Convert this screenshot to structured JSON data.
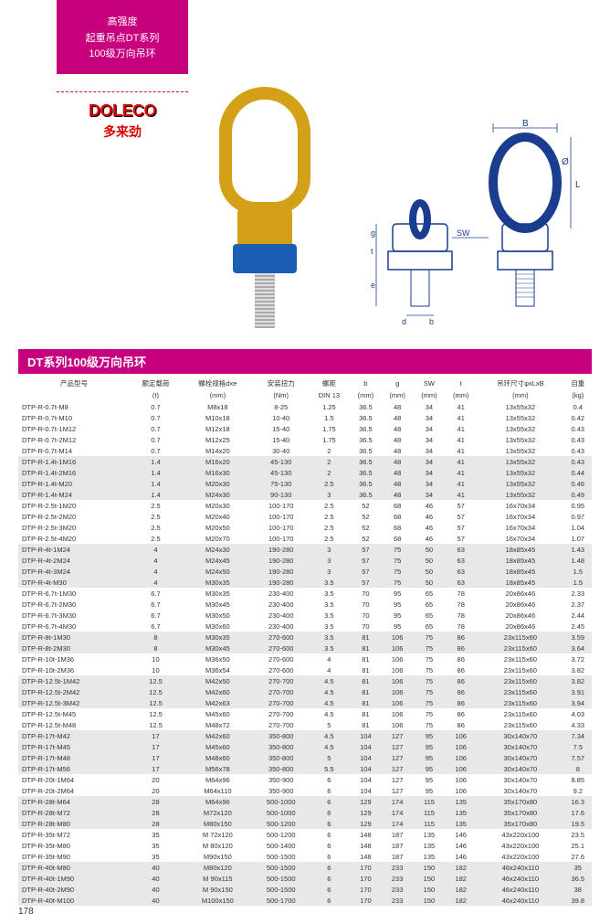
{
  "header": {
    "line1": "高强度",
    "line2": "起重吊点DT系列",
    "line3": "100级万向吊环"
  },
  "logo": {
    "en": "DOLECO",
    "cn": "多来劲"
  },
  "diagram_labels": {
    "B": "B",
    "L": "L",
    "phi": "Ø",
    "SW": "SW",
    "g": "g",
    "t": "t",
    "e": "e",
    "d": "d",
    "b": "b"
  },
  "section_title": "DT系列100级万向吊环",
  "columns": [
    {
      "h1": "产品型号",
      "h2": ""
    },
    {
      "h1": "额定载荷",
      "h2": "(t)"
    },
    {
      "h1": "螺栓规格dxe",
      "h2": "(mm)"
    },
    {
      "h1": "安装扭力",
      "h2": "(Nm)"
    },
    {
      "h1": "螺距",
      "h2": "DIN 13"
    },
    {
      "h1": "b",
      "h2": "(mm)"
    },
    {
      "h1": "g",
      "h2": "(mm)"
    },
    {
      "h1": "SW",
      "h2": "(mm)"
    },
    {
      "h1": "t",
      "h2": "(mm)"
    },
    {
      "h1": "吊环尺寸φxLxB",
      "h2": "(mm)"
    },
    {
      "h1": "自重",
      "h2": "(kg)"
    }
  ],
  "rows": [
    [
      "DTP-R-0.7t-M8",
      "0.7",
      "M8x18",
      "8-25",
      "1.25",
      "36.5",
      "48",
      "34",
      "41",
      "13x55x32",
      "0.4"
    ],
    [
      "DTP-R-0.7t-M10",
      "0.7",
      "M10x18",
      "10-40",
      "1.5",
      "36.5",
      "48",
      "34",
      "41",
      "13x55x32",
      "0.42"
    ],
    [
      "DTP-R-0.7t-1M12",
      "0.7",
      "M12x18",
      "15-40",
      "1.75",
      "36.5",
      "48",
      "34",
      "41",
      "13x55x32",
      "0.43"
    ],
    [
      "DTP-R-0.7t-2M12",
      "0.7",
      "M12x25",
      "15-40",
      "1.75",
      "36.5",
      "48",
      "34",
      "41",
      "13x55x32",
      "0.43"
    ],
    [
      "DTP-R-0.7t-M14",
      "0.7",
      "M14x20",
      "30-40",
      "2",
      "36.5",
      "48",
      "34",
      "41",
      "13x55x32",
      "0.43"
    ],
    [
      "DTP-R-1.4t-1M16",
      "1.4",
      "M16x20",
      "45-130",
      "2",
      "36.5",
      "48",
      "34",
      "41",
      "13x55x32",
      "0.43"
    ],
    [
      "DTP-R-1.4t-2M16",
      "1.4",
      "M16x30",
      "45-130",
      "2",
      "36.5",
      "48",
      "34",
      "41",
      "13x55x32",
      "0.44"
    ],
    [
      "DTP-R-1.4t-M20",
      "1.4",
      "M20x30",
      "75-130",
      "2.5",
      "36.5",
      "48",
      "34",
      "41",
      "13x55x32",
      "0.46"
    ],
    [
      "DTP-R-1.4t-M24",
      "1.4",
      "M24x30",
      "90-130",
      "3",
      "36.5",
      "48",
      "34",
      "41",
      "13x55x32",
      "0.49"
    ],
    [
      "DTP-R-2.5t-1M20",
      "2.5",
      "M20x30",
      "100-170",
      "2.5",
      "52",
      "68",
      "46",
      "57",
      "16x70x34",
      "0.95"
    ],
    [
      "DTP-R-2.5t-2M20",
      "2.5",
      "M20x40",
      "100-170",
      "2.5",
      "52",
      "68",
      "46",
      "57",
      "16x70x34",
      "0.97"
    ],
    [
      "DTP-R-2.5t-3M20",
      "2.5",
      "M20x50",
      "100-170",
      "2.5",
      "52",
      "68",
      "46",
      "57",
      "16x70x34",
      "1.04"
    ],
    [
      "DTP-R-2.5t-4M20",
      "2.5",
      "M20x70",
      "100-170",
      "2.5",
      "52",
      "68",
      "46",
      "57",
      "16x70x34",
      "1.07"
    ],
    [
      "DTP-R-4t-1M24",
      "4",
      "M24x30",
      "190-280",
      "3",
      "57",
      "75",
      "50",
      "63",
      "18x85x45",
      "1.43"
    ],
    [
      "DTP-R-4t-2M24",
      "4",
      "M24x45",
      "190-280",
      "3",
      "57",
      "75",
      "50",
      "63",
      "18x85x45",
      "1.48"
    ],
    [
      "DTP-R-4t-3M24",
      "4",
      "M24x50",
      "190-280",
      "3",
      "57",
      "75",
      "50",
      "63",
      "18x85x45",
      "1.5"
    ],
    [
      "DTP-R-4t-M30",
      "4",
      "M30x35",
      "190-280",
      "3.5",
      "57",
      "75",
      "50",
      "63",
      "18x85x45",
      "1.5"
    ],
    [
      "DTP-R-6.7t-1M30",
      "6.7",
      "M30x35",
      "230-400",
      "3.5",
      "70",
      "95",
      "65",
      "78",
      "20x86x46",
      "2.33"
    ],
    [
      "DTP-R-6.7t-2M30",
      "6.7",
      "M30x45",
      "230-400",
      "3.5",
      "70",
      "95",
      "65",
      "78",
      "20x86x46",
      "2.37"
    ],
    [
      "DTP-R-6.7t-3M30",
      "6.7",
      "M30x50",
      "230-400",
      "3.5",
      "70",
      "95",
      "65",
      "78",
      "20x86x46",
      "2.44"
    ],
    [
      "DTP-R-6.7t-4M30",
      "6.7",
      "M30x60",
      "230-400",
      "3.5",
      "70",
      "95",
      "65",
      "78",
      "20x86x46",
      "2.45"
    ],
    [
      "DTP-R-8t-1M30",
      "8",
      "M30x35",
      "270-600",
      "3.5",
      "81",
      "106",
      "75",
      "86",
      "23x115x60",
      "3.59"
    ],
    [
      "DTP-R-8t-2M30",
      "8",
      "M30x45",
      "270-600",
      "3.5",
      "81",
      "106",
      "75",
      "86",
      "23x115x60",
      "3.64"
    ],
    [
      "DTP-R-10t-1M36",
      "10",
      "M36x50",
      "270-600",
      "4",
      "81",
      "106",
      "75",
      "86",
      "23x115x60",
      "3.72"
    ],
    [
      "DTP-R-10t-2M36",
      "10",
      "M36x54",
      "270-600",
      "4",
      "81",
      "106",
      "75",
      "86",
      "23x115x60",
      "3.82"
    ],
    [
      "DTP-R-12.5t-1M42",
      "12.5",
      "M42x50",
      "270-700",
      "4.5",
      "81",
      "106",
      "75",
      "86",
      "23x115x60",
      "3.82"
    ],
    [
      "DTP-R-12.5t-2M42",
      "12.5",
      "M42x60",
      "270-700",
      "4.5",
      "81",
      "106",
      "75",
      "86",
      "23x115x60",
      "3.91"
    ],
    [
      "DTP-R-12.5t-3M42",
      "12.5",
      "M42x63",
      "270-700",
      "4.5",
      "81",
      "106",
      "75",
      "86",
      "23x115x60",
      "3.94"
    ],
    [
      "DTP-R-12.5t-M45",
      "12.5",
      "M45x60",
      "270-700",
      "4.5",
      "81",
      "106",
      "75",
      "86",
      "23x115x60",
      "4.03"
    ],
    [
      "DTP-R-12.5t-M48",
      "12.5",
      "M48x72",
      "270-700",
      "5",
      "81",
      "106",
      "75",
      "86",
      "23x115x60",
      "4.33"
    ],
    [
      "DTP-R-17t-M42",
      "17",
      "M42x60",
      "350-800",
      "4.5",
      "104",
      "127",
      "95",
      "106",
      "30x140x70",
      "7.34"
    ],
    [
      "DTP-R-17t-M45",
      "17",
      "M45x60",
      "350-800",
      "4.5",
      "104",
      "127",
      "95",
      "106",
      "30x140x70",
      "7.5"
    ],
    [
      "DTP-R-17t-M48",
      "17",
      "M48x60",
      "350-800",
      "5",
      "104",
      "127",
      "95",
      "106",
      "30x140x70",
      "7.57"
    ],
    [
      "DTP-R-17t-M56",
      "17",
      "M56x78",
      "350-800",
      "5.5",
      "104",
      "127",
      "95",
      "106",
      "30x140x70",
      "8"
    ],
    [
      "DTP-R-20t-1M64",
      "20",
      "M64x96",
      "350-900",
      "6",
      "104",
      "127",
      "95",
      "106",
      "30x140x70",
      "8.85"
    ],
    [
      "DTP-R-20t-2M64",
      "20",
      "M64x110",
      "350-900",
      "6",
      "104",
      "127",
      "95",
      "106",
      "30x140x70",
      "9.2"
    ],
    [
      "DTP-R-28t-M64",
      "28",
      "M64x96",
      "500-1000",
      "6",
      "129",
      "174",
      "115",
      "135",
      "35x170x80",
      "16.3"
    ],
    [
      "DTP-R-28t-M72",
      "28",
      "M72x120",
      "500-1000",
      "6",
      "129",
      "174",
      "115",
      "135",
      "35x170x80",
      "17.6"
    ],
    [
      "DTP-R-28t-M80",
      "28",
      "M80x150",
      "500-1200",
      "6",
      "129",
      "174",
      "115",
      "135",
      "35x170x80",
      "19.5"
    ],
    [
      "DTP-R-35t-M72",
      "35",
      "M 72x120",
      "500-1200",
      "6",
      "148",
      "187",
      "135",
      "146",
      "43x220x100",
      "23.5"
    ],
    [
      "DTP-R-35t-M80",
      "35",
      "M 80x120",
      "500-1400",
      "6",
      "148",
      "187",
      "135",
      "146",
      "43x220x100",
      "25.1"
    ],
    [
      "DTP-R-35t-M90",
      "35",
      "M90x150",
      "500-1500",
      "6",
      "148",
      "187",
      "135",
      "146",
      "43x220x100",
      "27.6"
    ],
    [
      "DTP-R-40t-M80",
      "40",
      "M80x120",
      "500-1500",
      "6",
      "170",
      "233",
      "150",
      "182",
      "46x240x110",
      "35"
    ],
    [
      "DTP-R-40t-1M90",
      "40",
      "M 90x115",
      "500-1500",
      "6",
      "170",
      "233",
      "150",
      "182",
      "46x240x110",
      "36.5"
    ],
    [
      "DTP-R-40t-2M90",
      "40",
      "M 90x150",
      "500-1500",
      "6",
      "170",
      "233",
      "150",
      "182",
      "46x240x110",
      "38"
    ],
    [
      "DTP-R-40t-M100",
      "40",
      "M100x150",
      "500-1700",
      "6",
      "170",
      "233",
      "150",
      "182",
      "46x240x110",
      "39.8"
    ]
  ],
  "band_groups": [
    [
      5,
      8
    ],
    [
      13,
      16
    ],
    [
      21,
      22
    ],
    [
      25,
      27
    ],
    [
      30,
      33
    ],
    [
      36,
      38
    ],
    [
      42,
      45
    ]
  ],
  "page_number": "178"
}
